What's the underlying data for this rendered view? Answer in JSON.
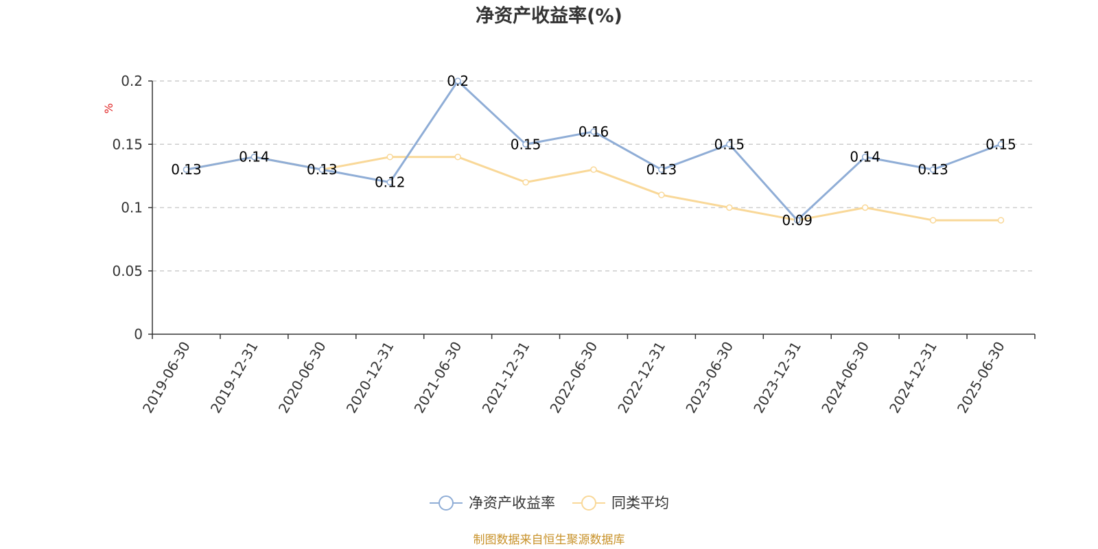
{
  "chart_data": {
    "type": "line",
    "title": "净资产收益率(%)",
    "unit_label": "%",
    "categories": [
      "2019-06-30",
      "2019-12-31",
      "2020-06-30",
      "2020-12-31",
      "2021-06-30",
      "2021-12-31",
      "2022-06-30",
      "2022-12-31",
      "2023-06-30",
      "2023-12-31",
      "2024-06-30",
      "2024-12-31",
      "2025-06-30"
    ],
    "series": [
      {
        "name": "净资产收益率",
        "color": "#8fadd6",
        "values": [
          0.13,
          0.14,
          0.13,
          0.12,
          0.2,
          0.15,
          0.16,
          0.13,
          0.15,
          0.09,
          0.14,
          0.13,
          0.15
        ],
        "show_labels": true
      },
      {
        "name": "同类平均",
        "color": "#f9d898",
        "values": [
          0.13,
          0.14,
          0.13,
          0.14,
          0.14,
          0.12,
          0.13,
          0.11,
          0.1,
          0.09,
          0.1,
          0.09,
          0.09
        ],
        "show_labels": false
      }
    ],
    "ylim": [
      0,
      0.2
    ],
    "yticks": [
      "0",
      "0.05",
      "0.1",
      "0.15",
      "0.2"
    ],
    "ytick_values": [
      0,
      0.05,
      0.1,
      0.15,
      0.2
    ],
    "grid": true,
    "legend_position": "bottom"
  },
  "footer": {
    "source": "制图数据来自恒生聚源数据库"
  }
}
